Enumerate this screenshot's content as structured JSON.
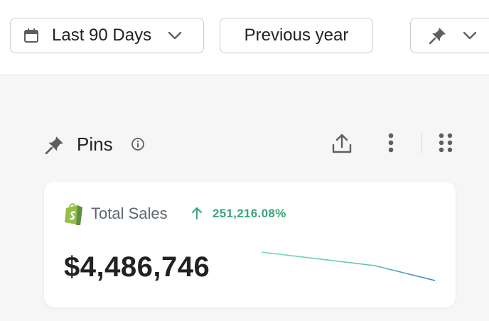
{
  "toolbar": {
    "date_range": "Last 90 Days",
    "comparison": "Previous year"
  },
  "section": {
    "title": "Pins"
  },
  "card": {
    "metric": "Total Sales",
    "change": "251,216.08%",
    "amount": "$4,486,746"
  }
}
